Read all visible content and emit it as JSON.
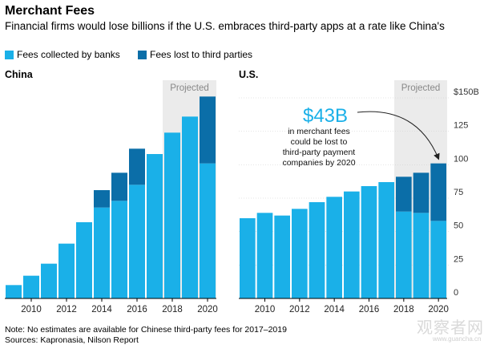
{
  "header": {
    "title": "Merchant Fees",
    "subtitle": "Financial firms would lose billions if the U.S. embraces third-party apps at a rate like China's"
  },
  "legend": {
    "banks": "Fees collected by banks",
    "third": "Fees lost to third parties"
  },
  "colors": {
    "banks": "#1ab0e8",
    "third": "#0b6ea8",
    "projected_bg": "#ebebeb",
    "axis": "#555555",
    "grid": "#cccccc"
  },
  "annotation": {
    "big": "$43B",
    "lines": [
      "in merchant fees",
      "could be lost to",
      "third-party payment",
      "companies by 2020"
    ]
  },
  "footer": {
    "note": "Note: No estimates are available for Chinese third-party fees for 2017–2019",
    "sources": "Sources: Kapronasia, Nilson Report"
  },
  "watermark": {
    "text": "观察者网",
    "sub": "www.guancha.cn"
  },
  "chart_data": [
    {
      "type": "bar",
      "panel": "China",
      "title": "China",
      "projected_label": "Projected",
      "projected_range": [
        2018,
        2020
      ],
      "x": [
        2009,
        2010,
        2011,
        2012,
        2013,
        2014,
        2015,
        2016,
        2017,
        2018,
        2019,
        2020
      ],
      "x_tick_labels": [
        "2010",
        "2012",
        "2014",
        "2016",
        "2018",
        "2020"
      ],
      "x_tick_values": [
        2010,
        2012,
        2014,
        2016,
        2018,
        2020
      ],
      "ylim": [
        0,
        150
      ],
      "series": [
        {
          "name": "Fees collected by banks",
          "values": [
            10,
            17,
            26,
            41,
            57,
            68,
            73,
            85,
            108,
            124,
            136,
            101
          ]
        },
        {
          "name": "Fees lost to third parties",
          "values": [
            0,
            0,
            0,
            0,
            0,
            13,
            21,
            27,
            0,
            0,
            0,
            50
          ]
        }
      ]
    },
    {
      "type": "bar",
      "panel": "U.S.",
      "title": "U.S.",
      "projected_label": "Projected",
      "projected_range": [
        2018,
        2020
      ],
      "x": [
        2009,
        2010,
        2011,
        2012,
        2013,
        2014,
        2015,
        2016,
        2017,
        2018,
        2019,
        2020
      ],
      "x_tick_labels": [
        "2010",
        "2012",
        "2014",
        "2016",
        "2018",
        "2020"
      ],
      "x_tick_values": [
        2010,
        2012,
        2014,
        2016,
        2018,
        2020
      ],
      "y_tick_labels": [
        "$150B",
        "125",
        "100",
        "75",
        "50",
        "25",
        "0"
      ],
      "y_tick_values": [
        150,
        125,
        100,
        75,
        50,
        25,
        0
      ],
      "ylim": [
        0,
        150
      ],
      "series": [
        {
          "name": "Fees collected by banks",
          "values": [
            60,
            64,
            62,
            67,
            72,
            76,
            80,
            84,
            87,
            65,
            64,
            58
          ]
        },
        {
          "name": "Fees lost to third parties",
          "values": [
            0,
            0,
            0,
            0,
            0,
            0,
            0,
            0,
            0,
            26,
            30,
            43
          ]
        }
      ]
    }
  ]
}
